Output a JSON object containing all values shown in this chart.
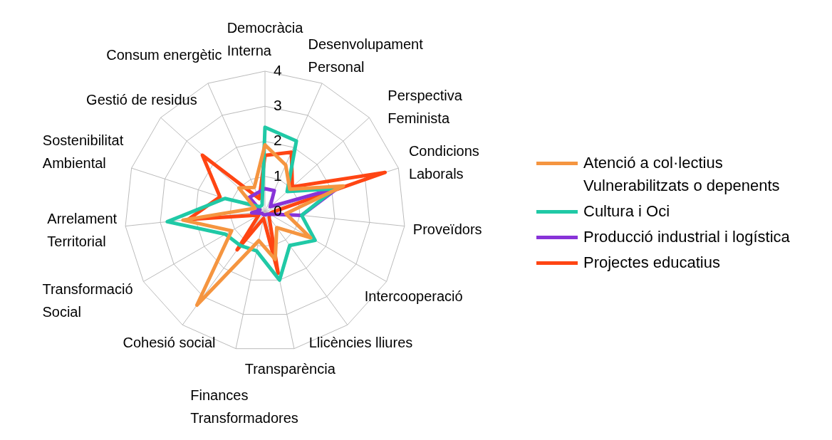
{
  "chart_data": {
    "type": "radar",
    "categories": [
      "Democràcia Interna",
      "Desenvolupament Personal",
      "Perspectiva Feminista",
      "Condicions Laborals",
      "Proveïdors",
      "Intercooperació",
      "Llicències lliures",
      "Transparència",
      "Finances Transformadores",
      "Cohesió social",
      "Transformació Social",
      "Arrelament Territorial",
      "Sostenibilitat Ambiental",
      "Gestió de residus",
      "Consum energètic"
    ],
    "series": [
      {
        "name": "Atenció a col·lectius Vulnerabilitzats o depenents",
        "color": "#f59540",
        "values": [
          1.9,
          1.45,
          0.95,
          2.35,
          0.6,
          1.5,
          0.57,
          1.4,
          0.85,
          3.3,
          1.1,
          2.35,
          0.3,
          1.0,
          0.75
        ]
      },
      {
        "name": "Cultura i Oci",
        "color": "#20c9a6",
        "values": [
          2.4,
          2.2,
          0.85,
          2.1,
          1.05,
          1.65,
          1.2,
          2.0,
          1.15,
          1.2,
          1.3,
          2.8,
          1.2,
          0.2,
          0.2
        ]
      },
      {
        "name": "Producció industrial i logística",
        "color": "#8833d8",
        "values": [
          0.65,
          0.65,
          0.2,
          2.2,
          1.05,
          0.15,
          0.1,
          0.1,
          0.1,
          0.1,
          0.1,
          0.38,
          0.15,
          0.6,
          0.57
        ]
      },
      {
        "name": "Projectes educatius",
        "color": "#ff4513",
        "values": [
          1.6,
          1.85,
          1.05,
          3.6,
          0.2,
          0.15,
          0.2,
          1.8,
          0.2,
          1.35,
          0.2,
          2.2,
          1.35,
          2.4,
          0.4
        ]
      }
    ],
    "ylim": [
      0,
      4
    ],
    "yticks": [
      0,
      1,
      2,
      3,
      4
    ],
    "grid": true,
    "legend": "right",
    "marker": "none",
    "line_style": "solid"
  }
}
